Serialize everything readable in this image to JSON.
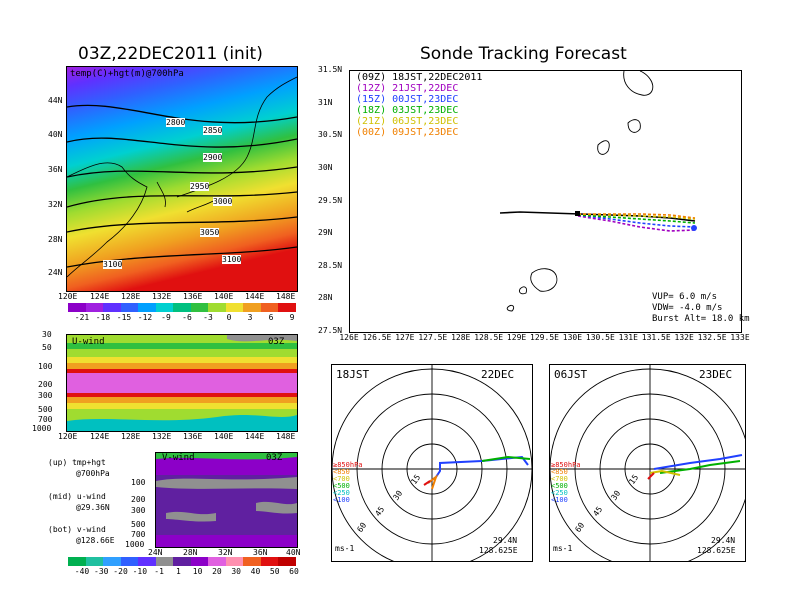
{
  "main_title": "Sonde Tracking Forecast",
  "left_title": "03Z,22DEC2011 (init)",
  "map_panel": {
    "label": "temp(C)+hgt(m)@700hPa",
    "lat_ticks": [
      "44N",
      "40N",
      "36N",
      "32N",
      "28N",
      "24N"
    ],
    "lon_ticks": [
      "120E",
      "124E",
      "128E",
      "132E",
      "136E",
      "140E",
      "144E",
      "148E"
    ],
    "contour_labels": [
      "2800",
      "2850",
      "2900",
      "2950",
      "3000",
      "3050",
      "3100",
      "3100"
    ],
    "colorbar": {
      "ticks": [
        "-21",
        "-18",
        "-15",
        "-12",
        "-9",
        "-6",
        "-3",
        "0",
        "3",
        "6",
        "9"
      ],
      "colors": [
        "#8c00c8",
        "#a020e0",
        "#6030ff",
        "#3060ff",
        "#00a0ff",
        "#00d0d0",
        "#00c080",
        "#30c040",
        "#a0dc30",
        "#f0e030",
        "#f0a020",
        "#f06020",
        "#e01010"
      ]
    }
  },
  "uwind_panel": {
    "label": "U-wind",
    "time": "03Z",
    "levels": [
      "30",
      "50",
      "100",
      "200",
      "300",
      "500",
      "700",
      "1000"
    ],
    "lon_ticks": [
      "120E",
      "124E",
      "128E",
      "132E",
      "136E",
      "140E",
      "144E",
      "148E"
    ]
  },
  "vwind_panel": {
    "label": "V-wind",
    "time": "03Z",
    "levels": [
      "100",
      "200",
      "300",
      "500",
      "700",
      "1000"
    ],
    "lat_ticks": [
      "24N",
      "28N",
      "32N",
      "36N",
      "40N"
    ]
  },
  "legend_notes": [
    {
      "a": "(up) tmp+hgt",
      "b": "@700hPa"
    },
    {
      "a": "(mid) u-wind",
      "b": "@29.36N"
    },
    {
      "a": "(bot) v-wind",
      "b": "@128.66E"
    }
  ],
  "wind_colorbar": {
    "ticks": [
      "-40",
      "-30",
      "-20",
      "-10",
      "-1",
      "1",
      "10",
      "20",
      "30",
      "40",
      "50",
      "60"
    ],
    "colors": [
      "#00b050",
      "#20c0a0",
      "#30a0ff",
      "#3060ff",
      "#6030ff",
      "#909090",
      "#6020a0",
      "#8c00c8",
      "#e060e0",
      "#ff90b0",
      "#f06020",
      "#e01010",
      "#c00000"
    ]
  },
  "track_panel": {
    "lat_ticks": [
      "31.5N",
      "31N",
      "30.5N",
      "30N",
      "29.5N",
      "29N",
      "28.5N",
      "28N",
      "27.5N"
    ],
    "lon_ticks": [
      "126E",
      "126.5E",
      "127E",
      "127.5E",
      "128E",
      "128.5E",
      "129E",
      "129.5E",
      "130E",
      "130.5E",
      "131E",
      "131.5E",
      "132E",
      "132.5E",
      "133E"
    ],
    "legend": [
      {
        "text": "(09Z) 18JST,22DEC2011",
        "color": "#000000"
      },
      {
        "text": "(12Z) 21JST,22DEC",
        "color": "#a000c0"
      },
      {
        "text": "(15Z) 00JST,23DEC",
        "color": "#2040ff"
      },
      {
        "text": "(18Z) 03JST,23DEC",
        "color": "#00b000"
      },
      {
        "text": "(21Z) 06JST,23DEC",
        "color": "#d0c000"
      },
      {
        "text": "(00Z) 09JST,23DEC",
        "color": "#f08000"
      }
    ],
    "params": [
      "VUP= 6.0 m/s",
      "VDW= -4.0 m/s",
      "Burst Alt= 18.0 km"
    ]
  },
  "polar_panels": [
    {
      "left": "18JST",
      "right": "22DEC",
      "pos": "29.4N",
      "pos2": "128.625E",
      "unit": "ms-1"
    },
    {
      "left": "06JST",
      "right": "23DEC",
      "pos": "29.4N",
      "pos2": "128.625E",
      "unit": "ms-1"
    }
  ],
  "polar_rings": [
    "15",
    "30",
    "45",
    "60"
  ],
  "polar_levels": [
    {
      "text": "≥850hPa",
      "color": "#e01010"
    },
    {
      "text": "<850",
      "color": "#f08000"
    },
    {
      "text": "<700",
      "color": "#d0c000"
    },
    {
      "text": "<500",
      "color": "#00b000"
    },
    {
      "text": "<250",
      "color": "#00c0c0"
    },
    {
      "text": "<100",
      "color": "#2040ff"
    }
  ]
}
